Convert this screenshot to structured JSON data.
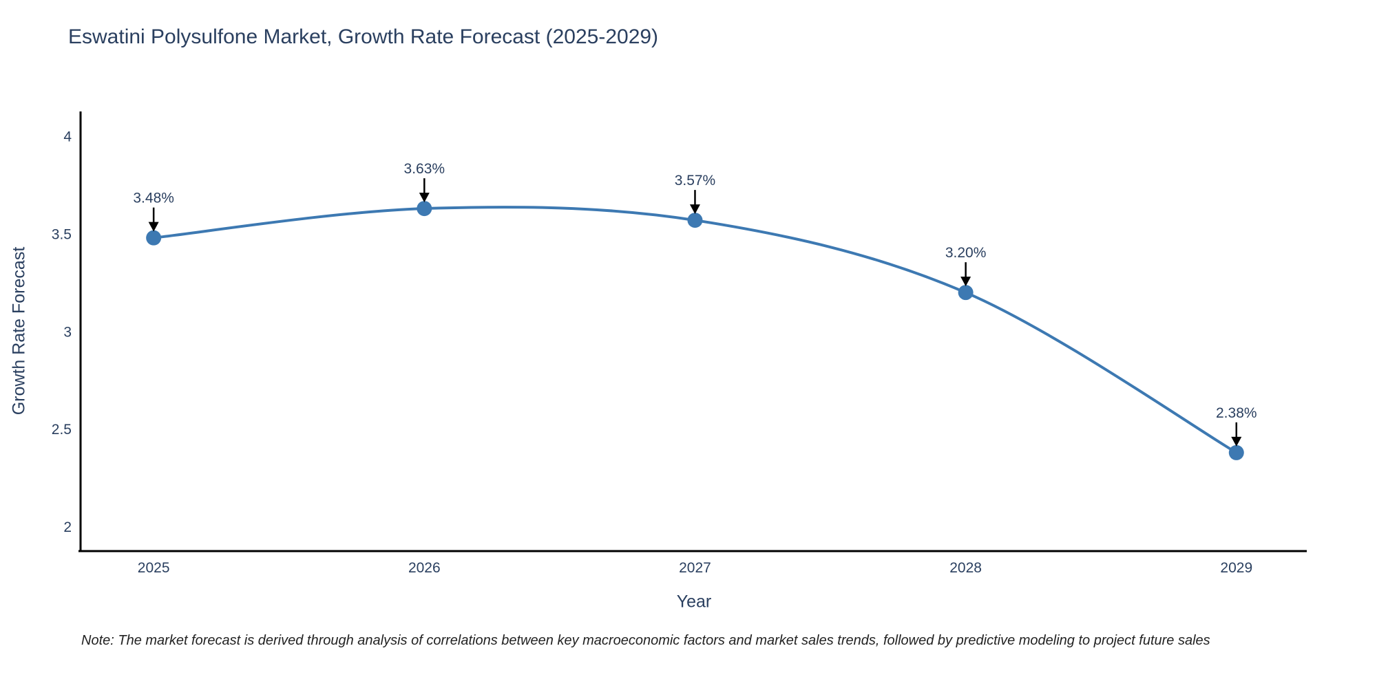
{
  "title": "Eswatini Polysulfone Market, Growth Rate Forecast (2025-2029)",
  "note": "Note: The market forecast is derived through analysis of correlations between key macroeconomic factors and market sales trends, followed by predictive modeling to project future sales",
  "chart_data": {
    "type": "line",
    "title": "Eswatini Polysulfone Market, Growth Rate Forecast (2025-2029)",
    "xlabel": "Year",
    "ylabel": "Growth Rate Forecast",
    "x": [
      2025,
      2026,
      2027,
      2028,
      2029
    ],
    "series": [
      {
        "name": "Growth Rate Forecast",
        "values": [
          3.48,
          3.63,
          3.57,
          3.2,
          2.38
        ]
      }
    ],
    "point_labels": [
      "3.48%",
      "3.63%",
      "3.57%",
      "3.20%",
      "2.38%"
    ],
    "xticks": [
      "2025",
      "2026",
      "2027",
      "2028",
      "2029"
    ],
    "yticks": [
      2,
      2.5,
      3,
      3.5,
      4
    ],
    "ytick_labels": [
      "2",
      "2.5",
      "3",
      "3.5",
      "4"
    ],
    "xlim": [
      2024.73,
      2029.26
    ],
    "ylim": [
      1.876,
      4.127
    ],
    "grid": false,
    "legend": false,
    "line_shape": "spline",
    "annotation_style": "down-arrow",
    "colors": {
      "line": "#3d79b2",
      "marker": "#3d79b2",
      "axis": "#000000",
      "tick_text": "#2a3f5f",
      "label_text": "#2a3f5f",
      "arrow": "#000000"
    }
  }
}
